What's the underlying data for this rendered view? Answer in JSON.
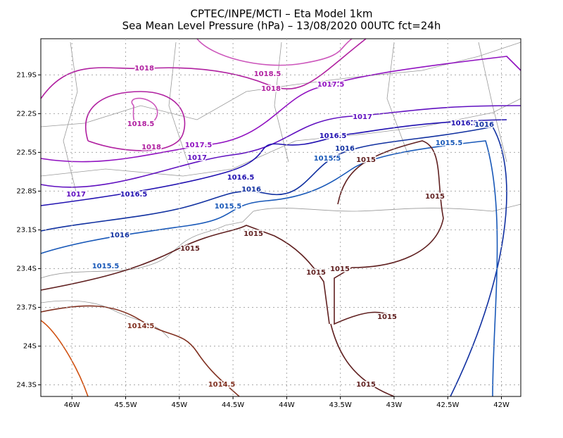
{
  "map": {
    "title": "CPTEC/INPE/MCTI –  Eta Model 1km",
    "subtitle": "Sea Mean Level Pressure (hPa) – 13/08/2020 00UTC fct=24h",
    "lon_lim": [
      -46.29,
      -41.82
    ],
    "lat_lim": [
      -21.62,
      -24.39
    ],
    "lon_ticks": [
      {
        "value": -46,
        "label": "46W"
      },
      {
        "value": -45.5,
        "label": "45.5W"
      },
      {
        "value": -45,
        "label": "45W"
      },
      {
        "value": -44.5,
        "label": "44.5W"
      },
      {
        "value": -44,
        "label": "44W"
      },
      {
        "value": -43.5,
        "label": "43.5W"
      },
      {
        "value": -43,
        "label": "43W"
      },
      {
        "value": -42.5,
        "label": "42.5W"
      },
      {
        "value": -42,
        "label": "42W"
      }
    ],
    "lat_ticks": [
      {
        "value": -21.9,
        "label": "21.9S"
      },
      {
        "value": -22.2,
        "label": "22.2S"
      },
      {
        "value": -22.5,
        "label": "22.5S"
      },
      {
        "value": -22.8,
        "label": "22.8S"
      },
      {
        "value": -23.1,
        "label": "23.1S"
      },
      {
        "value": -23.4,
        "label": "23.4S"
      },
      {
        "value": -23.7,
        "label": "23.7S"
      },
      {
        "value": -24,
        "label": "24S"
      },
      {
        "value": -24.3,
        "label": "24.3S"
      }
    ],
    "contour_labels": [
      1018,
      1018.5,
      1018,
      1017.5,
      1018.5,
      1017,
      1016.5,
      1016,
      1018,
      1017.5,
      1017,
      1016.5,
      1016,
      1015.5,
      1015,
      1015.5,
      1016.5,
      1016,
      1017,
      1016.5,
      1015,
      1015.5,
      1016,
      1015,
      1015,
      1015,
      1015,
      1015.5,
      1015,
      1014.5,
      1014.5,
      1015
    ]
  }
}
